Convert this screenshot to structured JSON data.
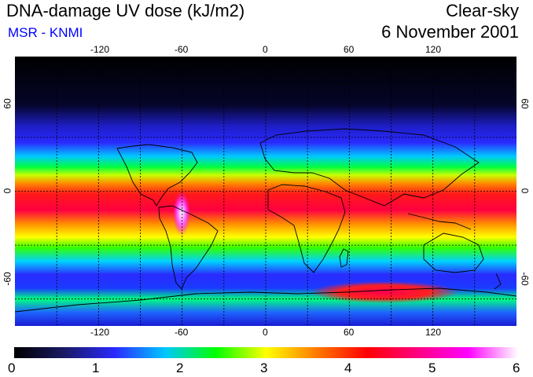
{
  "header": {
    "title": "DNA-damage UV dose (kJ/m2)",
    "subtitle": "MSR - KNMI",
    "condition": "Clear-sky",
    "date": "6 November 2001"
  },
  "colors": {
    "subtitle": "#0000ff",
    "gridline": "#000000",
    "coastline": "#000000",
    "colormap_stops": [
      "#000000",
      "#1a1a66",
      "#2a2aff",
      "#00c8ff",
      "#00ff00",
      "#ffff00",
      "#ff7a00",
      "#ff0000",
      "#ff0080",
      "#ff00ff",
      "#ffffff"
    ]
  },
  "map": {
    "projection": "equirectangular",
    "lon_range": [
      -180,
      180
    ],
    "lat_range": [
      -75,
      75
    ],
    "grid_lon": [
      -150,
      -120,
      -90,
      -60,
      -30,
      0,
      30,
      60,
      90,
      120,
      150
    ],
    "grid_lat": [
      -60,
      -30,
      0,
      30,
      60
    ],
    "lon_ticks": [
      "-120",
      "-60",
      "0",
      "60",
      "120"
    ],
    "lat_ticks": [
      "60",
      "0",
      "-60"
    ],
    "lat_ticks_right": [
      "60",
      "0",
      "-60"
    ]
  },
  "colorbar": {
    "min": 0,
    "max": 6,
    "labels": [
      "0",
      "1",
      "2",
      "3",
      "4",
      "5",
      "6"
    ]
  }
}
